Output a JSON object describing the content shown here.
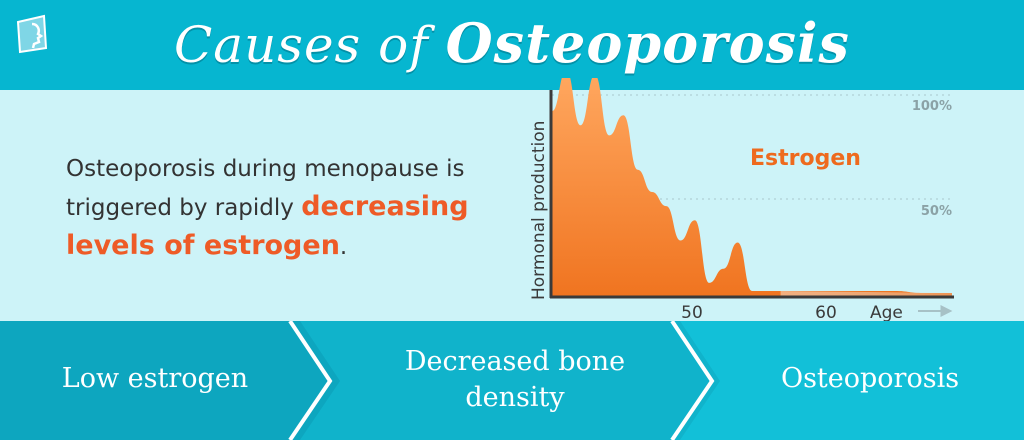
{
  "header": {
    "title_prefix": "Causes of",
    "title_main": "Osteoporosis"
  },
  "intro": {
    "text_before": "Osteoporosis during menopause is triggered by rapidly ",
    "highlight": "decreasing levels of estrogen",
    "text_after": "."
  },
  "chart_data": {
    "type": "area",
    "ylabel": "Hormonal production",
    "xlabel": "Age",
    "series": [
      {
        "name": "Estrogen"
      }
    ],
    "reference_lines": [
      "100%",
      "50%"
    ],
    "x_ticks": [
      "50",
      "60"
    ],
    "x": [
      38,
      39,
      40,
      41,
      42,
      43,
      44,
      45,
      46,
      47,
      48,
      49,
      50,
      51,
      52,
      53,
      54,
      56,
      58,
      60,
      62,
      64,
      66
    ],
    "y": [
      92,
      112,
      85,
      110,
      80,
      90,
      63,
      52,
      45,
      28,
      38,
      7,
      14,
      27,
      3,
      3,
      3,
      3,
      3,
      3,
      3,
      2,
      2
    ],
    "colors": {
      "area_top": "#ffa860",
      "area_bottom": "#f07420",
      "series_label": "#ee6a1e"
    }
  },
  "flow": {
    "steps": [
      "Low estrogen",
      "Decreased bone density",
      "Osteoporosis"
    ],
    "colors": [
      "#0da6bf",
      "#10b3cb",
      "#12c0d8"
    ]
  }
}
